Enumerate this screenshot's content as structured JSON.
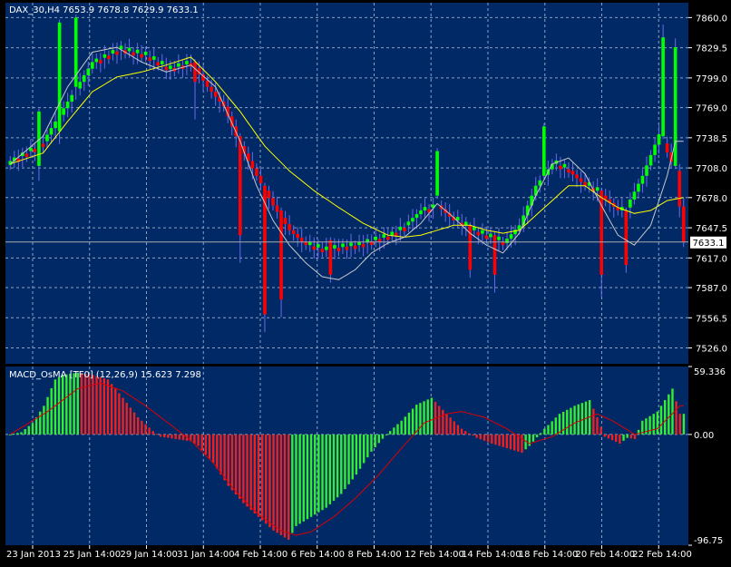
{
  "window": {
    "symbol_line": "DAX_30,H4  7653.9 7678.8 7629.9 7633.1",
    "indicator_line": "MACD_OsMA [TF0] (12,26,9)  15.623 7.298"
  },
  "colors": {
    "background": "#012966",
    "frame": "#000000",
    "grid": "#8aa1c4",
    "text": "#ffffff",
    "bull_candle": "#00ff00",
    "bear_candle": "#ff0000",
    "small_bull": "#1f9e43",
    "wick": "#6a6ae8",
    "fast_ma": "#c8c8c8",
    "slow_ma": "#ffff00",
    "osma_up": "#33ee33",
    "osma_down": "#ee2020",
    "signal": "#dd0000",
    "current_price_line": "#aaaaaa"
  },
  "chart_data": [
    {
      "type": "candlestick",
      "title": "DAX_30,H4",
      "ylim": [
        7510,
        7875
      ],
      "y_ticks": [
        "7860.0",
        "7829.5",
        "7799.0",
        "7769.0",
        "7738.5",
        "7708.0",
        "7678.0",
        "7647.5",
        "7617.0",
        "7587.0",
        "7556.5",
        "7526.0"
      ],
      "x_ticks": [
        "23 Jan 2013",
        "25 Jan 14:00",
        "29 Jan 14:00",
        "31 Jan 14:00",
        "4 Feb 14:00",
        "6 Feb 14:00",
        "8 Feb 14:00",
        "12 Feb 14:00",
        "14 Feb 14:00",
        "18 Feb 14:00",
        "20 Feb 14:00",
        "22 Feb 14:00"
      ],
      "last_price": "7633.1",
      "close_anchors": [
        [
          0,
          7715
        ],
        [
          8,
          7735
        ],
        [
          14,
          7775
        ],
        [
          20,
          7815
        ],
        [
          26,
          7828
        ],
        [
          32,
          7822
        ],
        [
          38,
          7808
        ],
        [
          44,
          7815
        ],
        [
          48,
          7790
        ],
        [
          52,
          7770
        ],
        [
          56,
          7730
        ],
        [
          60,
          7700
        ],
        [
          64,
          7670
        ],
        [
          68,
          7645
        ],
        [
          72,
          7630
        ],
        [
          76,
          7625
        ],
        [
          80,
          7628
        ],
        [
          84,
          7630
        ],
        [
          88,
          7635
        ],
        [
          92,
          7640
        ],
        [
          96,
          7650
        ],
        [
          100,
          7665
        ],
        [
          104,
          7670
        ],
        [
          108,
          7655
        ],
        [
          112,
          7645
        ],
        [
          116,
          7638
        ],
        [
          120,
          7632
        ],
        [
          124,
          7650
        ],
        [
          128,
          7690
        ],
        [
          132,
          7712
        ],
        [
          136,
          7705
        ],
        [
          140,
          7690
        ],
        [
          144,
          7680
        ],
        [
          148,
          7665
        ],
        [
          150,
          7668
        ],
        [
          154,
          7700
        ],
        [
          158,
          7742
        ],
        [
          162,
          7705
        ],
        [
          164,
          7633
        ]
      ],
      "spikes": [
        [
          7,
          7710,
          7765,
          7698
        ],
        [
          12,
          7745,
          7855,
          7735
        ],
        [
          16,
          7790,
          7860,
          7780
        ],
        [
          45,
          7815,
          7795,
          7760
        ],
        [
          56,
          7740,
          7640,
          7615
        ],
        [
          62,
          7690,
          7560,
          7545
        ],
        [
          66,
          7665,
          7575,
          7560
        ],
        [
          78,
          7635,
          7600,
          7595
        ],
        [
          104,
          7680,
          7725,
          7720
        ],
        [
          112,
          7650,
          7605,
          7600
        ],
        [
          118,
          7640,
          7600,
          7585
        ],
        [
          130,
          7700,
          7750,
          7748
        ],
        [
          144,
          7685,
          7600,
          7580
        ],
        [
          150,
          7665,
          7610,
          7605
        ],
        [
          159,
          7740,
          7840,
          7850
        ],
        [
          162,
          7710,
          7830,
          7836
        ]
      ],
      "fast_ma_anchors": [
        [
          0,
          7712
        ],
        [
          8,
          7740
        ],
        [
          14,
          7790
        ],
        [
          20,
          7825
        ],
        [
          26,
          7830
        ],
        [
          32,
          7815
        ],
        [
          38,
          7805
        ],
        [
          44,
          7812
        ],
        [
          50,
          7790
        ],
        [
          56,
          7735
        ],
        [
          60,
          7690
        ],
        [
          64,
          7655
        ],
        [
          68,
          7630
        ],
        [
          72,
          7612
        ],
        [
          76,
          7598
        ],
        [
          80,
          7595
        ],
        [
          84,
          7605
        ],
        [
          88,
          7622
        ],
        [
          92,
          7632
        ],
        [
          96,
          7638
        ],
        [
          100,
          7652
        ],
        [
          104,
          7672
        ],
        [
          108,
          7658
        ],
        [
          112,
          7642
        ],
        [
          116,
          7630
        ],
        [
          120,
          7622
        ],
        [
          124,
          7642
        ],
        [
          128,
          7680
        ],
        [
          132,
          7712
        ],
        [
          136,
          7718
        ],
        [
          140,
          7702
        ],
        [
          144,
          7670
        ],
        [
          148,
          7640
        ],
        [
          152,
          7630
        ],
        [
          156,
          7650
        ],
        [
          160,
          7700
        ],
        [
          162,
          7735
        ],
        [
          164,
          7735
        ]
      ],
      "slow_ma_anchors": [
        [
          0,
          7712
        ],
        [
          8,
          7723
        ],
        [
          14,
          7755
        ],
        [
          20,
          7785
        ],
        [
          26,
          7800
        ],
        [
          32,
          7805
        ],
        [
          38,
          7812
        ],
        [
          44,
          7820
        ],
        [
          50,
          7795
        ],
        [
          56,
          7765
        ],
        [
          62,
          7730
        ],
        [
          68,
          7705
        ],
        [
          74,
          7685
        ],
        [
          80,
          7668
        ],
        [
          86,
          7652
        ],
        [
          92,
          7640
        ],
        [
          96,
          7638
        ],
        [
          100,
          7640
        ],
        [
          104,
          7645
        ],
        [
          108,
          7650
        ],
        [
          112,
          7650
        ],
        [
          116,
          7645
        ],
        [
          120,
          7642
        ],
        [
          124,
          7645
        ],
        [
          128,
          7660
        ],
        [
          132,
          7675
        ],
        [
          136,
          7690
        ],
        [
          140,
          7690
        ],
        [
          144,
          7678
        ],
        [
          148,
          7668
        ],
        [
          152,
          7662
        ],
        [
          156,
          7665
        ],
        [
          160,
          7675
        ],
        [
          164,
          7678
        ]
      ]
    },
    {
      "type": "bar",
      "title": "MACD_OsMA [TF0] (12,26,9)",
      "ylim": [
        -96.75,
        59.336
      ],
      "y_ticks": [
        "59.336",
        "0.00",
        "-96.75"
      ],
      "osma_anchors": [
        [
          0,
          0
        ],
        [
          3,
          2
        ],
        [
          6,
          10
        ],
        [
          9,
          25
        ],
        [
          12,
          48
        ],
        [
          14,
          52
        ],
        [
          18,
          54
        ],
        [
          22,
          52
        ],
        [
          26,
          48
        ],
        [
          30,
          32
        ],
        [
          34,
          15
        ],
        [
          38,
          3
        ],
        [
          40,
          -2
        ],
        [
          44,
          -4
        ],
        [
          48,
          -6
        ],
        [
          50,
          -10
        ],
        [
          54,
          -25
        ],
        [
          58,
          -45
        ],
        [
          62,
          -60
        ],
        [
          66,
          -72
        ],
        [
          70,
          -84
        ],
        [
          72,
          -88
        ],
        [
          74,
          -92
        ],
        [
          76,
          -80
        ],
        [
          80,
          -72
        ],
        [
          84,
          -64
        ],
        [
          88,
          -52
        ],
        [
          92,
          -35
        ],
        [
          96,
          -15
        ],
        [
          100,
          0
        ],
        [
          104,
          12
        ],
        [
          108,
          26
        ],
        [
          112,
          32
        ],
        [
          116,
          18
        ],
        [
          120,
          5
        ],
        [
          124,
          -3
        ],
        [
          128,
          -8
        ],
        [
          132,
          -12
        ],
        [
          136,
          -16
        ],
        [
          138,
          -10
        ],
        [
          142,
          5
        ],
        [
          146,
          18
        ],
        [
          150,
          25
        ],
        [
          154,
          30
        ],
        [
          156,
          15
        ],
        [
          158,
          -2
        ],
        [
          162,
          -8
        ],
        [
          164,
          -3
        ],
        [
          166,
          -4
        ],
        [
          168,
          12
        ],
        [
          172,
          20
        ],
        [
          176,
          40
        ],
        [
          178,
          18
        ]
      ],
      "signal_anchors": [
        [
          0,
          0
        ],
        [
          10,
          20
        ],
        [
          18,
          40
        ],
        [
          24,
          45
        ],
        [
          30,
          38
        ],
        [
          36,
          25
        ],
        [
          42,
          10
        ],
        [
          48,
          -5
        ],
        [
          54,
          -25
        ],
        [
          60,
          -50
        ],
        [
          66,
          -70
        ],
        [
          72,
          -84
        ],
        [
          76,
          -88
        ],
        [
          80,
          -85
        ],
        [
          86,
          -72
        ],
        [
          92,
          -55
        ],
        [
          98,
          -35
        ],
        [
          104,
          -12
        ],
        [
          110,
          10
        ],
        [
          116,
          18
        ],
        [
          120,
          20
        ],
        [
          126,
          15
        ],
        [
          132,
          5
        ],
        [
          138,
          -8
        ],
        [
          144,
          -2
        ],
        [
          150,
          10
        ],
        [
          156,
          18
        ],
        [
          160,
          12
        ],
        [
          166,
          0
        ],
        [
          172,
          5
        ],
        [
          178,
          25
        ]
      ]
    }
  ]
}
